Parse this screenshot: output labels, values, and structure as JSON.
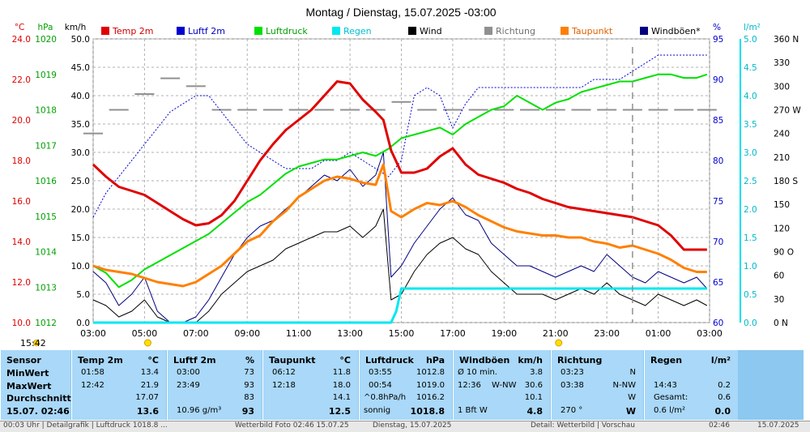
{
  "chart_data": {
    "type": "line",
    "title": "Montag / Dienstag, 15.07.2025  -03:00",
    "x_tick_labels": [
      "03:00",
      "05:00",
      "07:00",
      "09:00",
      "11:00",
      "13:00",
      "15:00",
      "17:00",
      "19:00",
      "21:00",
      "23:00",
      "01:00",
      "03:00"
    ],
    "x_range_hours": [
      3,
      27
    ],
    "axes": {
      "temp": {
        "unit": "°C",
        "color": "#e00000",
        "ticks": [
          "10.0",
          "12.0",
          "14.0",
          "16.0",
          "18.0",
          "20.0",
          "22.0",
          "24.0"
        ],
        "range": [
          10,
          24
        ]
      },
      "pressure": {
        "unit": "hPa",
        "color": "#00a000",
        "ticks": [
          "1012",
          "1013",
          "1014",
          "1015",
          "1016",
          "1017",
          "1018",
          "1019",
          "1020"
        ],
        "range": [
          1012,
          1020
        ]
      },
      "wind": {
        "unit": "km/h",
        "color": "#000000",
        "ticks": [
          "0.0",
          "5.0",
          "10.0",
          "15.0",
          "20.0",
          "25.0",
          "30.0",
          "35.0",
          "40.0",
          "45.0",
          "50.0"
        ],
        "range": [
          0,
          50
        ]
      },
      "humidity": {
        "unit": "%",
        "color": "#0000d0",
        "ticks": [
          "60",
          "65",
          "70",
          "75",
          "80",
          "85",
          "90",
          "95"
        ],
        "range": [
          60,
          95
        ]
      },
      "rain": {
        "unit": "l/m²",
        "color": "#00b8c8",
        "ticks": [
          "0.0",
          "0.5",
          "1.0",
          "1.5",
          "2.0",
          "2.5",
          "3.0",
          "3.5",
          "4.0",
          "4.5",
          "5.0"
        ],
        "range": [
          0,
          5
        ]
      },
      "direction": {
        "color": "#000000",
        "ticks": [
          "0 N",
          "30",
          "60",
          "90 O",
          "120",
          "150",
          "180 S",
          "210",
          "240",
          "270 W",
          "300",
          "330",
          "360 N"
        ],
        "range": [
          0,
          360
        ]
      }
    },
    "legend": [
      {
        "name": "Temp 2m",
        "color": "#e00000"
      },
      {
        "name": "Luftf 2m",
        "color": "#0000d0"
      },
      {
        "name": "Luftdruck",
        "color": "#00e000"
      },
      {
        "name": "Regen",
        "color": "#00e8f0"
      },
      {
        "name": "Wind",
        "color": "#000000"
      },
      {
        "name": "Richtung",
        "color": "#909090"
      },
      {
        "name": "Taupunkt",
        "color": "#ff8000"
      },
      {
        "name": "Windböen*",
        "color": "#000080"
      }
    ],
    "legend_placement": "top",
    "grid": true,
    "series": [
      {
        "name": "Temp 2m",
        "axis": "temp",
        "color": "#e00000",
        "x": [
          3,
          3.5,
          4,
          4.5,
          5,
          5.5,
          6,
          6.5,
          7,
          7.5,
          8,
          8.5,
          9,
          9.5,
          10,
          10.5,
          11,
          11.5,
          12,
          12.5,
          13,
          13.5,
          14,
          14.3,
          14.6,
          15,
          15.5,
          16,
          16.5,
          17,
          17.5,
          18,
          18.5,
          19,
          19.5,
          20,
          20.5,
          21,
          21.5,
          22,
          22.5,
          23,
          23.5,
          24,
          24.5,
          25,
          25.5,
          26,
          26.5,
          26.9
        ],
        "y": [
          17.8,
          17.2,
          16.7,
          16.5,
          16.3,
          15.9,
          15.5,
          15.1,
          14.8,
          14.9,
          15.3,
          16.0,
          17.0,
          18.0,
          18.8,
          19.5,
          20.0,
          20.5,
          21.2,
          21.9,
          21.8,
          21.0,
          20.4,
          20.0,
          18.5,
          17.4,
          17.4,
          17.6,
          18.2,
          18.6,
          17.8,
          17.3,
          17.1,
          16.9,
          16.6,
          16.4,
          16.1,
          15.9,
          15.7,
          15.6,
          15.5,
          15.4,
          15.3,
          15.2,
          15.0,
          14.8,
          14.3,
          13.6,
          13.6,
          13.6
        ]
      },
      {
        "name": "Taupunkt",
        "axis": "temp",
        "color": "#ff8000",
        "x": [
          3,
          3.5,
          4,
          4.5,
          5,
          5.5,
          6,
          6.5,
          7,
          7.5,
          8,
          8.5,
          9,
          9.5,
          10,
          10.5,
          11,
          11.5,
          12,
          12.5,
          13,
          13.5,
          14,
          14.3,
          14.6,
          15,
          15.5,
          16,
          16.5,
          17,
          17.5,
          18,
          18.5,
          19,
          19.5,
          20,
          20.5,
          21,
          21.5,
          22,
          22.5,
          23,
          23.5,
          24,
          24.5,
          25,
          25.5,
          26,
          26.5,
          26.9
        ],
        "y": [
          12.8,
          12.6,
          12.5,
          12.4,
          12.2,
          12.0,
          11.9,
          11.8,
          12.0,
          12.4,
          12.8,
          13.4,
          14.0,
          14.3,
          15.0,
          15.5,
          16.2,
          16.6,
          17.0,
          17.2,
          17.1,
          16.9,
          16.8,
          17.8,
          15.5,
          15.2,
          15.6,
          15.9,
          15.8,
          16.0,
          15.7,
          15.3,
          15.0,
          14.7,
          14.5,
          14.4,
          14.3,
          14.3,
          14.2,
          14.2,
          14.0,
          13.9,
          13.7,
          13.8,
          13.6,
          13.4,
          13.1,
          12.7,
          12.5,
          12.5
        ]
      },
      {
        "name": "Luftdruck",
        "axis": "pressure",
        "color": "#00e000",
        "x": [
          3,
          3.5,
          4,
          4.5,
          5,
          5.5,
          6,
          6.5,
          7,
          7.5,
          8,
          8.5,
          9,
          9.5,
          10,
          10.5,
          11,
          11.5,
          12,
          12.5,
          13,
          13.5,
          14,
          14.5,
          15,
          15.5,
          16,
          16.5,
          17,
          17.5,
          18,
          18.5,
          19,
          19.5,
          20,
          20.5,
          21,
          21.5,
          22,
          22.5,
          23,
          23.5,
          24,
          24.5,
          25,
          25.5,
          26,
          26.5,
          26.9
        ],
        "y": [
          1013.6,
          1013.4,
          1013.0,
          1013.2,
          1013.5,
          1013.7,
          1013.9,
          1014.1,
          1014.3,
          1014.5,
          1014.8,
          1015.1,
          1015.4,
          1015.6,
          1015.9,
          1016.2,
          1016.4,
          1016.5,
          1016.6,
          1016.6,
          1016.7,
          1016.8,
          1016.7,
          1016.9,
          1017.2,
          1017.3,
          1017.4,
          1017.5,
          1017.3,
          1017.6,
          1017.8,
          1018.0,
          1018.1,
          1018.4,
          1018.2,
          1018.0,
          1018.2,
          1018.3,
          1018.5,
          1018.6,
          1018.7,
          1018.8,
          1018.8,
          1018.9,
          1019.0,
          1019.0,
          1018.9,
          1018.9,
          1019.0
        ]
      },
      {
        "name": "Luftf 2m",
        "axis": "humidity",
        "color": "#0000d0",
        "x": [
          3,
          3.5,
          4,
          4.5,
          5,
          5.5,
          6,
          6.5,
          7,
          7.5,
          8,
          8.5,
          9,
          9.5,
          10,
          10.5,
          11,
          11.5,
          12,
          12.5,
          13,
          13.5,
          14,
          14.5,
          15,
          15.5,
          16,
          16.5,
          17,
          17.5,
          18,
          18.5,
          19,
          19.5,
          20,
          20.5,
          21,
          21.5,
          22,
          22.5,
          23,
          23.5,
          24,
          24.5,
          25,
          25.5,
          26,
          26.5,
          26.9
        ],
        "y": [
          73,
          76,
          78,
          80,
          82,
          84,
          86,
          87,
          88,
          88,
          86,
          84,
          82,
          81,
          80,
          79,
          79,
          79,
          80,
          80,
          81,
          80,
          79,
          78,
          80,
          88,
          89,
          88,
          84,
          87,
          89,
          89,
          89,
          89,
          89,
          89,
          89,
          89,
          89,
          90,
          90,
          90,
          91,
          92,
          93,
          93,
          93,
          93,
          93
        ]
      },
      {
        "name": "Windböen*",
        "axis": "wind",
        "color": "#000080",
        "x": [
          3,
          3.5,
          4,
          4.5,
          5,
          5.5,
          6,
          6.5,
          7,
          7.5,
          8,
          8.5,
          9,
          9.5,
          10,
          10.5,
          11,
          11.5,
          12,
          12.5,
          13,
          13.5,
          14,
          14.3,
          14.6,
          15,
          15.5,
          16,
          16.5,
          17,
          17.5,
          18,
          18.5,
          19,
          19.5,
          20,
          20.5,
          21,
          21.5,
          22,
          22.5,
          23,
          23.5,
          24,
          24.5,
          25,
          25.5,
          26,
          26.5,
          26.9
        ],
        "y": [
          9,
          7,
          3,
          5,
          8,
          2,
          0,
          0,
          1,
          4,
          8,
          12,
          15,
          17,
          18,
          20,
          22,
          24,
          26,
          25,
          27,
          24,
          26,
          30,
          8,
          10,
          14,
          17,
          20,
          22,
          19,
          18,
          14,
          12,
          10,
          10,
          9,
          8,
          9,
          10,
          9,
          12,
          10,
          8,
          7,
          9,
          8,
          7,
          8,
          6
        ]
      },
      {
        "name": "Wind",
        "axis": "wind",
        "color": "#000000",
        "x": [
          3,
          3.5,
          4,
          4.5,
          5,
          5.5,
          6,
          6.5,
          7,
          7.5,
          8,
          8.5,
          9,
          9.5,
          10,
          10.5,
          11,
          11.5,
          12,
          12.5,
          13,
          13.5,
          14,
          14.3,
          14.6,
          15,
          15.5,
          16,
          16.5,
          17,
          17.5,
          18,
          18.5,
          19,
          19.5,
          20,
          20.5,
          21,
          21.5,
          22,
          22.5,
          23,
          23.5,
          24,
          24.5,
          25,
          25.5,
          26,
          26.5,
          26.9
        ],
        "y": [
          4,
          3,
          1,
          2,
          4,
          1,
          0,
          0,
          0,
          2,
          5,
          7,
          9,
          10,
          11,
          13,
          14,
          15,
          16,
          16,
          17,
          15,
          17,
          20,
          4,
          5,
          9,
          12,
          14,
          15,
          13,
          12,
          9,
          7,
          5,
          5,
          5,
          4,
          5,
          6,
          5,
          7,
          5,
          4,
          3,
          5,
          4,
          3,
          4,
          3
        ]
      },
      {
        "name": "Regen",
        "axis": "rain",
        "color": "#00e8f0",
        "x": [
          3,
          14.6,
          14.7,
          14.8,
          14.9,
          15.0,
          15.1,
          26.9
        ],
        "y": [
          0,
          0,
          0.1,
          0.2,
          0.4,
          0.6,
          0.6,
          0.6
        ]
      },
      {
        "name": "Richtung",
        "axis": "direction",
        "color": "#909090",
        "x": [
          3,
          4,
          5,
          6,
          7,
          8,
          9,
          10,
          11,
          12,
          13,
          14,
          15,
          16,
          17,
          18,
          19,
          20,
          21,
          22,
          23,
          24,
          25,
          26,
          26.9
        ],
        "y": [
          240,
          270,
          290,
          310,
          300,
          270,
          270,
          270,
          270,
          270,
          270,
          270,
          280,
          270,
          270,
          270,
          270,
          270,
          270,
          270,
          270,
          270,
          270,
          270,
          270
        ]
      }
    ],
    "markers": {
      "sun_icons_at": [
        "05:00",
        "21:00"
      ],
      "current_time_label": "15:42",
      "dashed_vertical_at": "24:00"
    }
  },
  "table": {
    "columns": [
      {
        "title": "Sensor",
        "unit": ""
      },
      {
        "title": "Temp 2m",
        "unit": "°C"
      },
      {
        "title": "Luftf 2m",
        "unit": "%"
      },
      {
        "title": "Taupunkt",
        "unit": "°C"
      },
      {
        "title": "Luftdruck",
        "unit": "hPa"
      },
      {
        "title": "Windböen",
        "unit": "km/h"
      },
      {
        "title": "Richtung",
        "unit": ""
      },
      {
        "title": "Regen",
        "unit": "l/m²"
      }
    ],
    "row_labels": [
      "MinWert",
      "MaxWert",
      "Durchschnitt",
      "15.07. 02:46"
    ],
    "temp": {
      "min_t": "01:58",
      "min_v": "13.4",
      "max_t": "12:42",
      "max_v": "21.9",
      "avg": "17.07",
      "cur": "13.6"
    },
    "hum": {
      "min_t": "03:00",
      "min_v": "73",
      "max_t": "23:49",
      "max_v": "93",
      "avg": "83",
      "cur_extra": "10.96 g/m³",
      "cur": "93"
    },
    "dew": {
      "min_t": "06:12",
      "min_v": "11.8",
      "max_t": "12:18",
      "max_v": "18.0",
      "avg": "14.1",
      "cur": "12.5"
    },
    "press": {
      "min_t": "03:55",
      "min_v": "1012.8",
      "max_t": "00:54",
      "max_v": "1019.0",
      "avg_label": "^0.8hPa/h",
      "avg": "1016.2",
      "cur_label": "sonnig",
      "cur": "1018.8"
    },
    "gust": {
      "min_label": "Ø 10 min.",
      "min_v": "3.8",
      "max_t": "12:36",
      "max_dir": "W-NW",
      "max_v": "30.6",
      "avg": "10.1",
      "cur_label": "1 Bft W",
      "cur": "4.8"
    },
    "dir": {
      "min_t": "03:23",
      "min_v": "N",
      "max_t": "03:38",
      "max_v": "N-NW",
      "avg": "W",
      "cur_label": "270 °",
      "cur": "W"
    },
    "rain": {
      "max_t": "14:43",
      "max_v": "0.2",
      "avg_label": "Gesamt:",
      "avg": "0.6",
      "cur": "0.6 l/m²",
      "cur_v": "0.0"
    }
  },
  "footer": {
    "items": [
      "00:03 Uhr | Detailgrafik | Luftdruck 1018.8 ...",
      "Wetterbild Foto 02:46 15.07.25",
      "Dienstag, 15.07.2025",
      "Detail: Wetterbild | Vorschau",
      "02:46",
      "15.07.2025"
    ]
  }
}
